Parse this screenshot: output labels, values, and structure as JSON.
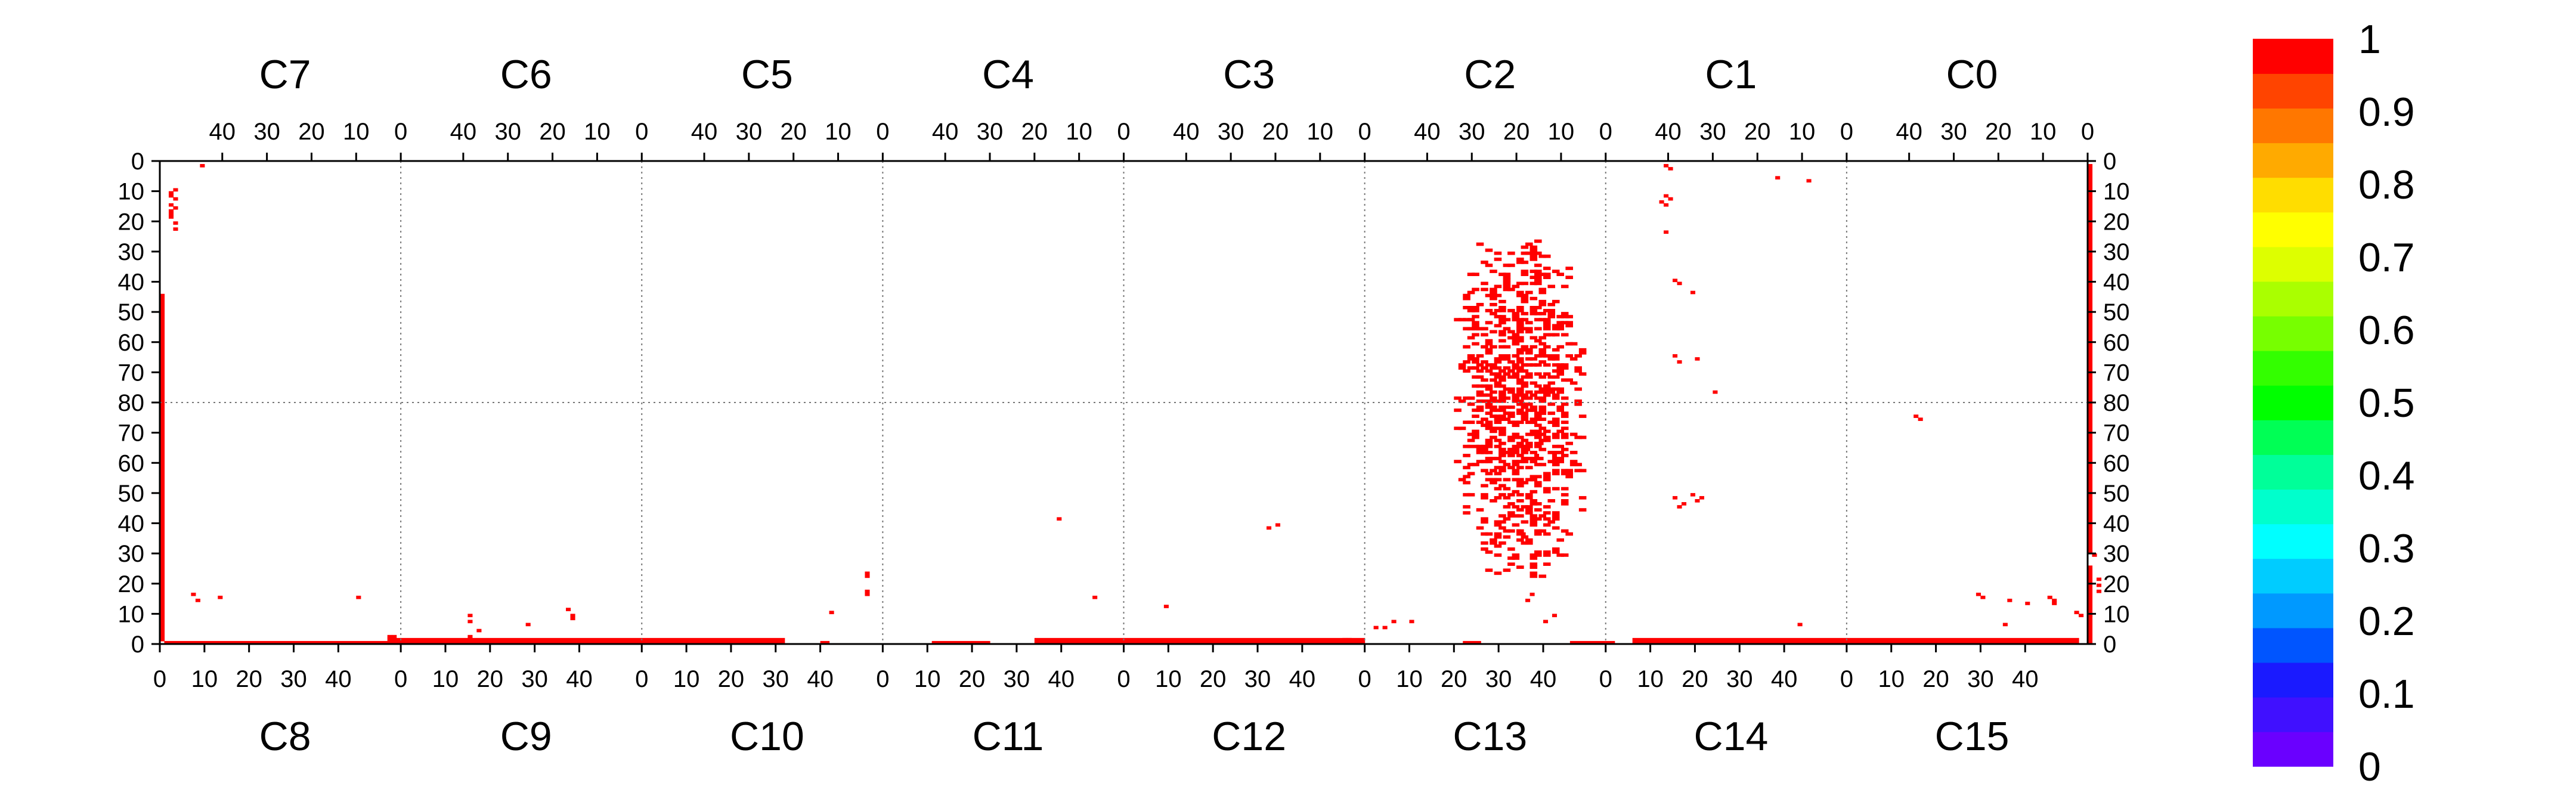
{
  "chart_data": {
    "type": "heatmap",
    "title": "",
    "chips_top": [
      "C7",
      "C6",
      "C5",
      "C4",
      "C3",
      "C2",
      "C1",
      "C0"
    ],
    "chips_bottom": [
      "C8",
      "C9",
      "C10",
      "C11",
      "C12",
      "C13",
      "C14",
      "C15"
    ],
    "top_x_tick_labels": [
      "0",
      "10",
      "20",
      "30",
      "40"
    ],
    "bottom_x_tick_labels": [
      "0",
      "10",
      "20",
      "30",
      "40"
    ],
    "y_tick_labels_top_half": [
      "0",
      "10",
      "20",
      "30",
      "40",
      "50",
      "60",
      "70",
      "80"
    ],
    "y_tick_labels_bottom_half": [
      "80",
      "70",
      "60",
      "50",
      "40",
      "30",
      "20",
      "10",
      "0"
    ],
    "grid": true,
    "colorbar": {
      "range": [
        0,
        1
      ],
      "labels": [
        "1",
        "0.9",
        "0.8",
        "0.7",
        "0.6",
        "0.5",
        "0.4",
        "0.3",
        "0.2",
        "0.1",
        "0"
      ],
      "colors": [
        "#6a00ff",
        "#4010ff",
        "#1a1aff",
        "#0055ff",
        "#0099ff",
        "#00ccff",
        "#00ffff",
        "#00ffcc",
        "#00ff99",
        "#00ff55",
        "#00ff00",
        "#33ff00",
        "#77ff00",
        "#aaff00",
        "#ddff00",
        "#ffff00",
        "#ffdd00",
        "#ffaa00",
        "#ff7700",
        "#ff4400",
        "#ff0000"
      ]
    },
    "hit_color": "#ff0000",
    "cells": [
      {
        "x": 9,
        "y": 1
      },
      {
        "x": 3,
        "y": 9
      },
      {
        "x": 2,
        "y": 10
      },
      {
        "x": 2,
        "y": 11
      },
      {
        "x": 3,
        "y": 12
      },
      {
        "x": 2,
        "y": 14
      },
      {
        "x": 3,
        "y": 15
      },
      {
        "x": 2,
        "y": 16
      },
      {
        "x": 2,
        "y": 17
      },
      {
        "x": 2,
        "y": 18
      },
      {
        "x": 3,
        "y": 20
      },
      {
        "x": 3,
        "y": 22
      },
      {
        "x": 7,
        "y": 143
      },
      {
        "x": 8,
        "y": 145
      },
      {
        "x": 13,
        "y": 144
      },
      {
        "x": 44,
        "y": 144
      },
      {
        "x": 51,
        "y": 157
      },
      {
        "x": 52,
        "y": 157
      },
      {
        "x": 69,
        "y": 150
      },
      {
        "x": 69,
        "y": 152
      },
      {
        "x": 71,
        "y": 155
      },
      {
        "x": 69,
        "y": 157
      },
      {
        "x": 82,
        "y": 153
      },
      {
        "x": 91,
        "y": 148
      },
      {
        "x": 92,
        "y": 150
      },
      {
        "x": 92,
        "y": 151
      },
      {
        "x": 150,
        "y": 149
      },
      {
        "x": 158,
        "y": 136
      },
      {
        "x": 158,
        "y": 137
      },
      {
        "x": 158,
        "y": 142
      },
      {
        "x": 158,
        "y": 143
      },
      {
        "x": 201,
        "y": 118
      },
      {
        "x": 209,
        "y": 144
      },
      {
        "x": 225,
        "y": 147
      },
      {
        "x": 248,
        "y": 121
      },
      {
        "x": 250,
        "y": 120
      },
      {
        "x": 265,
        "y": 158
      },
      {
        "x": 266,
        "y": 158
      },
      {
        "x": 272,
        "y": 154
      },
      {
        "x": 274,
        "y": 154
      },
      {
        "x": 276,
        "y": 152
      },
      {
        "x": 280,
        "y": 152
      },
      {
        "x": 293,
        "y": 94
      },
      {
        "x": 300,
        "y": 96
      },
      {
        "x": 309,
        "y": 93
      },
      {
        "x": 306,
        "y": 95
      },
      {
        "x": 308,
        "y": 97
      },
      {
        "x": 309,
        "y": 98
      },
      {
        "x": 311,
        "y": 96
      },
      {
        "x": 312,
        "y": 97
      },
      {
        "x": 305,
        "y": 123
      },
      {
        "x": 304,
        "y": 122
      },
      {
        "x": 307,
        "y": 143
      },
      {
        "x": 306,
        "y": 145
      },
      {
        "x": 312,
        "y": 150
      },
      {
        "x": 310,
        "y": 152
      },
      {
        "x": 338,
        "y": 12
      },
      {
        "x": 337,
        "y": 11
      },
      {
        "x": 336,
        "y": 13
      },
      {
        "x": 337,
        "y": 14
      },
      {
        "x": 337,
        "y": 23
      },
      {
        "x": 337,
        "y": 1
      },
      {
        "x": 338,
        "y": 2
      },
      {
        "x": 339,
        "y": 39
      },
      {
        "x": 340,
        "y": 40
      },
      {
        "x": 343,
        "y": 43
      },
      {
        "x": 339,
        "y": 64
      },
      {
        "x": 340,
        "y": 66
      },
      {
        "x": 344,
        "y": 65
      },
      {
        "x": 339,
        "y": 111
      },
      {
        "x": 340,
        "y": 114
      },
      {
        "x": 343,
        "y": 110
      },
      {
        "x": 341,
        "y": 113
      },
      {
        "x": 344,
        "y": 112
      },
      {
        "x": 345,
        "y": 111
      },
      {
        "x": 348,
        "y": 76
      },
      {
        "x": 367,
        "y": 153
      },
      {
        "x": 362,
        "y": 5
      },
      {
        "x": 369,
        "y": 6
      },
      {
        "x": 393,
        "y": 84
      },
      {
        "x": 394,
        "y": 85
      },
      {
        "x": 407,
        "y": 143
      },
      {
        "x": 408,
        "y": 144
      },
      {
        "x": 414,
        "y": 145
      },
      {
        "x": 418,
        "y": 146
      },
      {
        "x": 413,
        "y": 153
      },
      {
        "x": 423,
        "y": 144
      },
      {
        "x": 424,
        "y": 145
      },
      {
        "x": 424,
        "y": 146
      },
      {
        "x": 429,
        "y": 149
      },
      {
        "x": 430,
        "y": 150
      },
      {
        "x": 432,
        "y": 150
      },
      {
        "x": 434,
        "y": 140
      },
      {
        "x": 434,
        "y": 142
      },
      {
        "x": 434,
        "y": 138
      },
      {
        "x": 433,
        "y": 130
      },
      {
        "x": 432,
        "y": 129
      }
    ],
    "bars": [
      {
        "x0": 338,
        "x1": 433,
        "y0": 0,
        "y1": 0
      },
      {
        "x0": 432,
        "x1": 433,
        "y0": 1,
        "y1": 130
      },
      {
        "x0": 432,
        "x1": 433,
        "y0": 134,
        "y1": 160
      },
      {
        "x0": 0,
        "x1": 1,
        "y0": 44,
        "y1": 159
      },
      {
        "x0": 1,
        "x1": 51,
        "y0": 159,
        "y1": 160
      },
      {
        "x0": 51,
        "x1": 140,
        "y0": 158,
        "y1": 160
      },
      {
        "x0": 148,
        "x1": 150,
        "y0": 159,
        "y1": 160
      },
      {
        "x0": 173,
        "x1": 186,
        "y0": 159,
        "y1": 160
      },
      {
        "x0": 196,
        "x1": 270,
        "y0": 158,
        "y1": 160
      },
      {
        "x0": 292,
        "x1": 296,
        "y0": 159,
        "y1": 160
      },
      {
        "x0": 316,
        "x1": 326,
        "y0": 159,
        "y1": 160
      },
      {
        "x0": 330,
        "x1": 430,
        "y0": 158,
        "y1": 160
      }
    ],
    "central_cluster": {
      "x_range": [
        290,
        318
      ],
      "y_range": [
        25,
        137
      ],
      "probability_per_cell": 0.36
    }
  }
}
